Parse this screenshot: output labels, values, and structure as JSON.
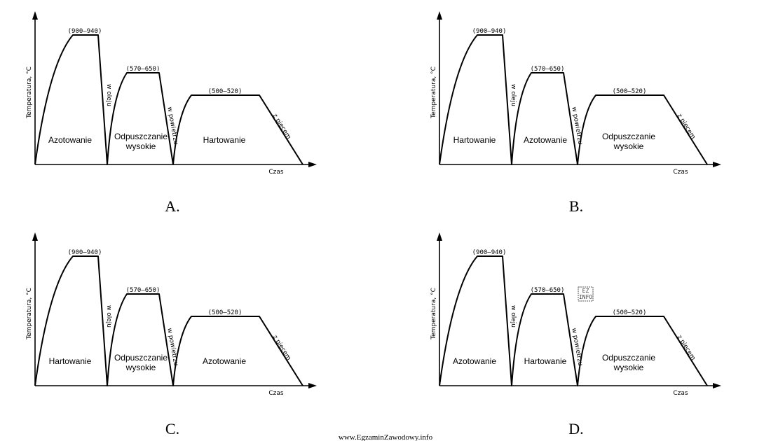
{
  "y_axis_label": "Temperatura, °C",
  "x_axis_label": "Czas",
  "ranges": [
    "(900–940)",
    "(570–650)",
    "(500–520)"
  ],
  "cooling": [
    "w oleju",
    "w powietrzu",
    "z piecem"
  ],
  "panels": [
    {
      "letter": "A.",
      "processes": [
        [
          "Azotowanie"
        ],
        [
          "Odpuszczanie",
          "wysokie"
        ],
        [
          "Hartowanie"
        ]
      ]
    },
    {
      "letter": "B.",
      "processes": [
        [
          "Hartowanie"
        ],
        [
          "Azotowanie"
        ],
        [
          "Odpuszczanie",
          "wysokie"
        ]
      ]
    },
    {
      "letter": "C.",
      "processes": [
        [
          "Hartowanie"
        ],
        [
          "Odpuszczanie",
          "wysokie"
        ],
        [
          "Azotowanie"
        ]
      ]
    },
    {
      "letter": "D.",
      "processes": [
        [
          "Azotowanie"
        ],
        [
          "Hartowanie"
        ],
        [
          "Odpuszczanie",
          "wysokie"
        ]
      ]
    }
  ],
  "watermark_lines": [
    "EZ",
    "INFO"
  ],
  "footer": "www.EgzaminZawodowy.info"
}
